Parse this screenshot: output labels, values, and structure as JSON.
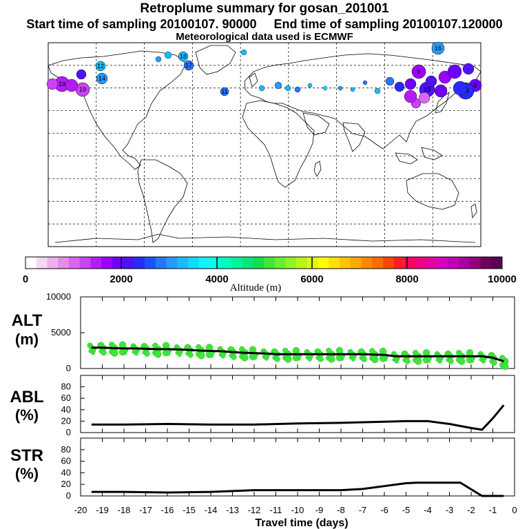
{
  "header": {
    "title": "Retroplume summary for gosan_201001",
    "sampling": "Start time of sampling 20100107. 90000     End time of sampling 20100107.120000",
    "met": "Meteorological data used is ECMWF"
  },
  "colorbar": {
    "label": "Altitude  (m)",
    "ticks": [
      "0",
      "2000",
      "4000",
      "6000",
      "8000",
      "10000"
    ],
    "colors": [
      "#ffffff",
      "#f6d7f6",
      "#eeb0ee",
      "#e58ce8",
      "#dc66f0",
      "#c844f2",
      "#b41cf6",
      "#9b00ff",
      "#6e00ff",
      "#4f12f2",
      "#2a2aff",
      "#1f50ff",
      "#2676ff",
      "#2a98ff",
      "#17bdff",
      "#10dcff",
      "#10f4ff",
      "#00ffe4",
      "#00ffbe",
      "#00f49a",
      "#00e878",
      "#10e050",
      "#3ee63a",
      "#68ee2e",
      "#90f41e",
      "#b8f614",
      "#dcfa0a",
      "#ffff00",
      "#ffe200",
      "#ffc400",
      "#ffa800",
      "#ff8800",
      "#ff6a00",
      "#ff4400",
      "#ff1e28",
      "#ff0060",
      "#f40088",
      "#e600a2",
      "#d800b8",
      "#c000b4",
      "#a8009e",
      "#90007c",
      "#6e005e",
      "#5a0058"
    ]
  },
  "map": {
    "plume_markers": [
      {
        "label": "16",
        "color": "#2a98ff",
        "size": 9
      },
      {
        "label": "12",
        "color": "#17bdff",
        "size": 7
      },
      {
        "label": "17",
        "color": "#2676ff",
        "size": 7
      },
      {
        "label": "14",
        "color": "#2a98ff",
        "size": 8
      },
      {
        "label": "18",
        "color": "#17bdff",
        "size": 7
      },
      {
        "label": "19",
        "color": "#b41cf6",
        "size": 11
      },
      {
        "label": "19",
        "color": "#c844f2",
        "size": 10
      },
      {
        "label": "11",
        "color": "#2676ff",
        "size": 6
      },
      {
        "label": "9",
        "color": "#9b00ff",
        "size": 10
      },
      {
        "label": "6",
        "color": "#6e00ff",
        "size": 9
      },
      {
        "label": "19",
        "color": "#2a2aff",
        "size": 12
      },
      {
        "label": "19",
        "color": "#4f12f2",
        "size": 11
      }
    ]
  },
  "chart_data": [
    {
      "type": "scatter",
      "panel_label": "ALT",
      "unit": "(m)",
      "x_range": [
        -20,
        0
      ],
      "ylim": [
        0,
        10000
      ],
      "y_ticks": [
        "10000",
        "5000",
        "0"
      ],
      "x": [
        -19.5,
        -19.0,
        -18.5,
        -18.0,
        -17.5,
        -17.0,
        -16.5,
        -16.0,
        -15.5,
        -15.0,
        -14.5,
        -14.0,
        -13.5,
        -13.0,
        -12.5,
        -12.0,
        -11.5,
        -11.0,
        -10.5,
        -10.0,
        -9.5,
        -9.0,
        -8.5,
        -8.0,
        -7.5,
        -7.0,
        -6.5,
        -6.0,
        -5.5,
        -5.0,
        -4.5,
        -4.0,
        -3.5,
        -3.0,
        -2.5,
        -2.0,
        -1.5,
        -1.0,
        -0.5
      ],
      "median_altitude": [
        2900,
        2900,
        2850,
        2800,
        2800,
        2750,
        2700,
        2700,
        2650,
        2600,
        2500,
        2450,
        2400,
        2300,
        2200,
        2150,
        2100,
        2000,
        2000,
        2000,
        2000,
        2000,
        2000,
        2000,
        2000,
        2000,
        1950,
        1900,
        1700,
        1700,
        1700,
        1700,
        1700,
        1700,
        1700,
        1700,
        1700,
        1500,
        1000
      ],
      "cluster_color": "#3ee63a"
    },
    {
      "type": "line",
      "panel_label": "ABL",
      "unit": "(%)",
      "x_range": [
        -20,
        0
      ],
      "ylim": [
        0,
        100
      ],
      "y_ticks": [
        "80",
        "60",
        "40",
        "20",
        "0"
      ],
      "x": [
        -19.5,
        -18,
        -16,
        -14,
        -12,
        -10,
        -8,
        -6,
        -5,
        -4,
        -3,
        -2,
        -1.5,
        -1,
        -0.5
      ],
      "values": [
        14,
        14,
        15,
        14,
        14,
        16,
        17,
        19,
        20,
        20,
        15,
        8,
        5,
        25,
        48
      ]
    },
    {
      "type": "line",
      "panel_label": "STR",
      "unit": "(%)",
      "x_range": [
        -20,
        0
      ],
      "ylim": [
        0,
        100
      ],
      "y_ticks": [
        "80",
        "60",
        "40",
        "20",
        "0"
      ],
      "x": [
        -19.5,
        -18,
        -16,
        -14,
        -12,
        -10,
        -8,
        -7,
        -6,
        -5,
        -4.5,
        -4,
        -3,
        -2.5,
        -1.5,
        -1,
        -0.5
      ],
      "values": [
        7,
        7,
        6,
        7,
        10,
        10,
        10,
        12,
        17,
        22,
        23,
        23,
        23,
        23,
        0,
        0,
        0
      ],
      "xlabel": "Travel time (days)",
      "x_ticks": [
        "-20",
        "-19",
        "-18",
        "-17",
        "-16",
        "-15",
        "-14",
        "-13",
        "-12",
        "-11",
        "-10",
        "-9",
        "-8",
        "-7",
        "-6",
        "-5",
        "-4",
        "-3",
        "-2",
        "-1",
        "0"
      ]
    }
  ]
}
